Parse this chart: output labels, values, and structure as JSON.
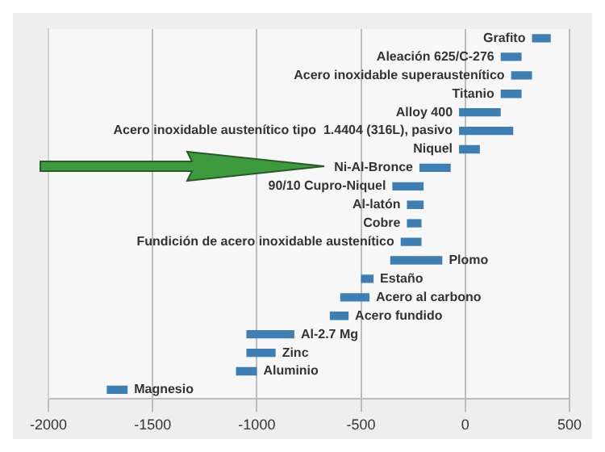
{
  "chart_data": {
    "type": "bar",
    "orientation": "horizontal",
    "categories": [
      "Grafito",
      "Aleación 625/C-276",
      "Acero inoxidable superaustenítico",
      "Titanio",
      "Alloy 400",
      "Acero inoxidable austenítico tipo  1.4404 (316L), pasivo",
      "Niquel",
      "Ni-Al-Bronce",
      "90/10 Cupro-Niquel",
      "Al-latón",
      "Cobre",
      "Fundición de acero inoxidable austenítico",
      "Plomo",
      "Estaño",
      "Acero al carbono",
      "Acero fundido",
      "Al-2.7 Mg",
      "Zinc",
      "Aluminio",
      "Magnesio"
    ],
    "base": [
      320,
      170,
      220,
      170,
      -30,
      -30,
      -30,
      -220,
      -350,
      -280,
      -280,
      -310,
      -360,
      -500,
      -600,
      -650,
      -1050,
      -1050,
      -1100,
      -1720
    ],
    "values": [
      90,
      100,
      100,
      100,
      200,
      260,
      100,
      150,
      150,
      80,
      70,
      100,
      250,
      60,
      140,
      90,
      230,
      140,
      100,
      100
    ],
    "color": "#3d7fb5",
    "xlim": [
      -2000,
      500
    ],
    "xticks": [
      -2000,
      -1500,
      -1000,
      -500,
      0,
      500
    ],
    "grid": "x",
    "legend": false
  }
}
